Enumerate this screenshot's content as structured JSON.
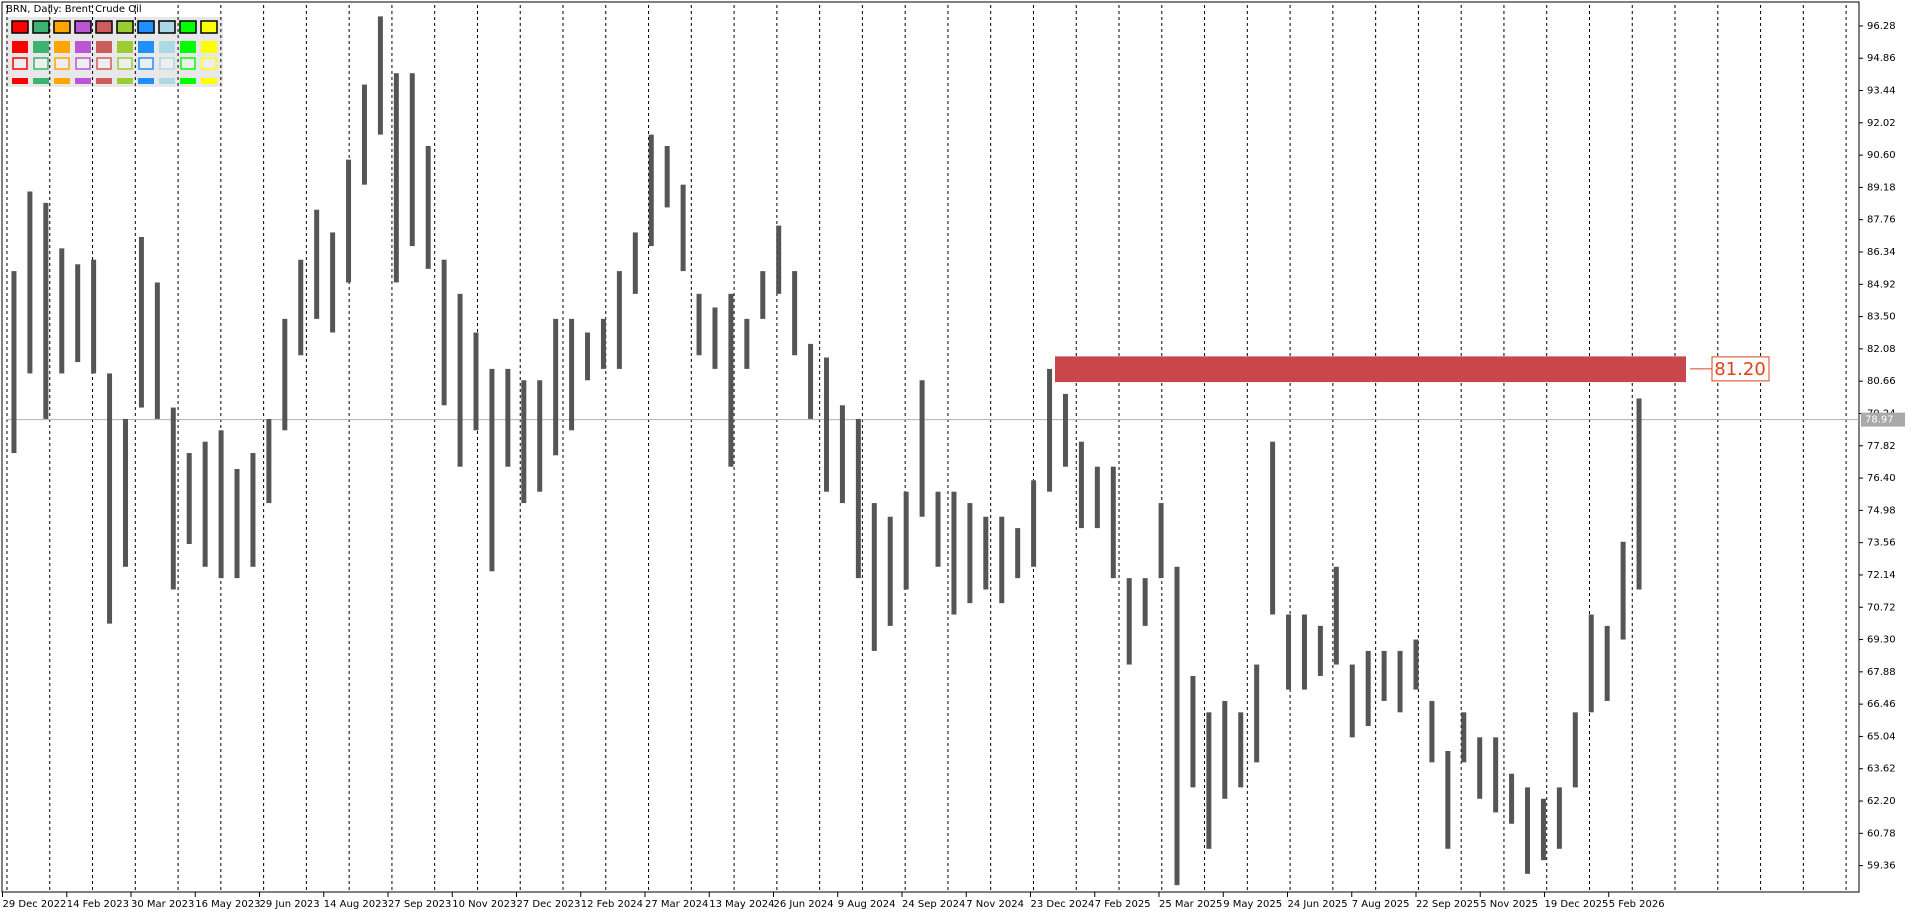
{
  "chart_data": {
    "type": "ohlc",
    "title": "BRN, Daily:  Brent Crude Oil",
    "ylim": [
      58.2,
      97.2
    ],
    "yticks": [
      96.28,
      94.86,
      93.44,
      92.02,
      {
        "value": 90.6,
        "label": "90.60"
      },
      89.18,
      87.76,
      86.34,
      84.92,
      {
        "value": 83.5,
        "label": "83.50"
      },
      82.08,
      80.66,
      79.24,
      77.82,
      {
        "value": 76.4,
        "label": "76.40"
      },
      74.98,
      73.56,
      72.14,
      70.72,
      {
        "value": 69.3,
        "label": "69.30"
      },
      67.88,
      66.46,
      65.04,
      63.62,
      {
        "value": 62.2,
        "label": "62.20"
      },
      60.78,
      59.36
    ],
    "x_tick_labels": [
      "29 Dec 2022",
      "14 Feb 2023",
      "30 Mar 2023",
      "16 May 2023",
      "29 Jun 2023",
      "14 Aug 2023",
      "27 Sep 2023",
      "10 Nov 2023",
      "27 Dec 2023",
      "12 Feb 2024",
      "27 Mar 2024",
      "13 May 2024",
      "26 Jun 2024",
      "9 Aug 2024",
      "24 Sep 2024",
      "7 Nov 2024",
      "23 Dec 2024",
      "7 Feb 2025",
      "25 Mar 2025",
      "9 May 2025",
      "24 Jun 2025",
      "7 Aug 2025",
      "22 Sep 2025",
      "5 Nov 2025",
      "19 Dec 2025",
      "5 Feb 2026"
    ],
    "color": "#555555",
    "grid": true,
    "high": [
      85.5,
      89,
      88.5,
      86.5,
      85.8,
      86,
      81,
      79,
      87,
      85,
      79.5,
      77.5,
      78,
      78.5,
      76.8,
      77.5,
      79,
      83.4,
      86,
      88.2,
      87.2,
      90.4,
      93.7,
      96.7,
      94.2,
      94.2,
      91,
      86,
      84.5,
      82.8,
      81.2,
      81.2,
      80.7,
      80.7,
      83.4,
      83.4,
      82.8,
      83.4,
      85.5,
      87.2,
      91.5,
      91,
      89.3,
      84.5,
      83.9,
      84.5,
      83.4,
      85.5,
      87.5,
      85.5,
      82.3,
      81.7,
      79.6,
      79,
      75.3,
      74.7,
      75.8,
      80.7,
      75.8,
      75.8,
      75.3,
      74.7,
      74.7,
      74.2,
      76.3,
      81.2,
      80.1,
      78,
      76.9,
      76.9,
      72,
      72,
      75.3,
      72.5,
      67.7,
      66.1,
      66.6,
      66.1,
      68.2,
      78,
      70.4,
      70.4,
      69.9,
      72.5,
      68.2,
      68.8,
      68.8,
      68.8,
      69.3,
      66.6,
      64.4,
      66.1,
      65,
      65,
      63.4,
      62.8,
      62.3,
      62.8,
      66.1,
      70.4,
      69.9,
      73.6,
      79.9
    ],
    "low": [
      77.5,
      81,
      79,
      81,
      81.5,
      81,
      70,
      72.5,
      79.5,
      79,
      71.5,
      73.5,
      72.5,
      72,
      72,
      72.5,
      75.3,
      78.5,
      81.8,
      83.4,
      82.8,
      85,
      89.3,
      91.5,
      85,
      86.6,
      85.6,
      79.6,
      76.9,
      78.5,
      72.3,
      76.9,
      75.3,
      75.8,
      77.4,
      78.5,
      80.7,
      81.2,
      81.2,
      84.5,
      86.6,
      88.3,
      85.5,
      81.8,
      81.2,
      76.9,
      81.2,
      83.4,
      84.5,
      81.8,
      79,
      75.8,
      75.3,
      72,
      68.8,
      69.9,
      71.5,
      74.7,
      72.5,
      70.4,
      70.9,
      71.5,
      70.9,
      72,
      72.5,
      75.8,
      76.9,
      74.2,
      74.2,
      72,
      68.2,
      69.9,
      72,
      58.5,
      62.8,
      60.1,
      62.3,
      62.8,
      63.9,
      70.4,
      67.1,
      67.1,
      67.7,
      68.2,
      65,
      65.5,
      66.6,
      66.1,
      67.1,
      63.9,
      60.1,
      63.9,
      62.3,
      61.7,
      61.2,
      59,
      59.6,
      60.1,
      62.8,
      66.1,
      66.6,
      69.3,
      71.5
    ],
    "last_price": 78.97,
    "zone": {
      "value": 81.2,
      "label": "81.20",
      "high": 81.75,
      "low": 80.62,
      "color": "#c9474a"
    }
  }
}
